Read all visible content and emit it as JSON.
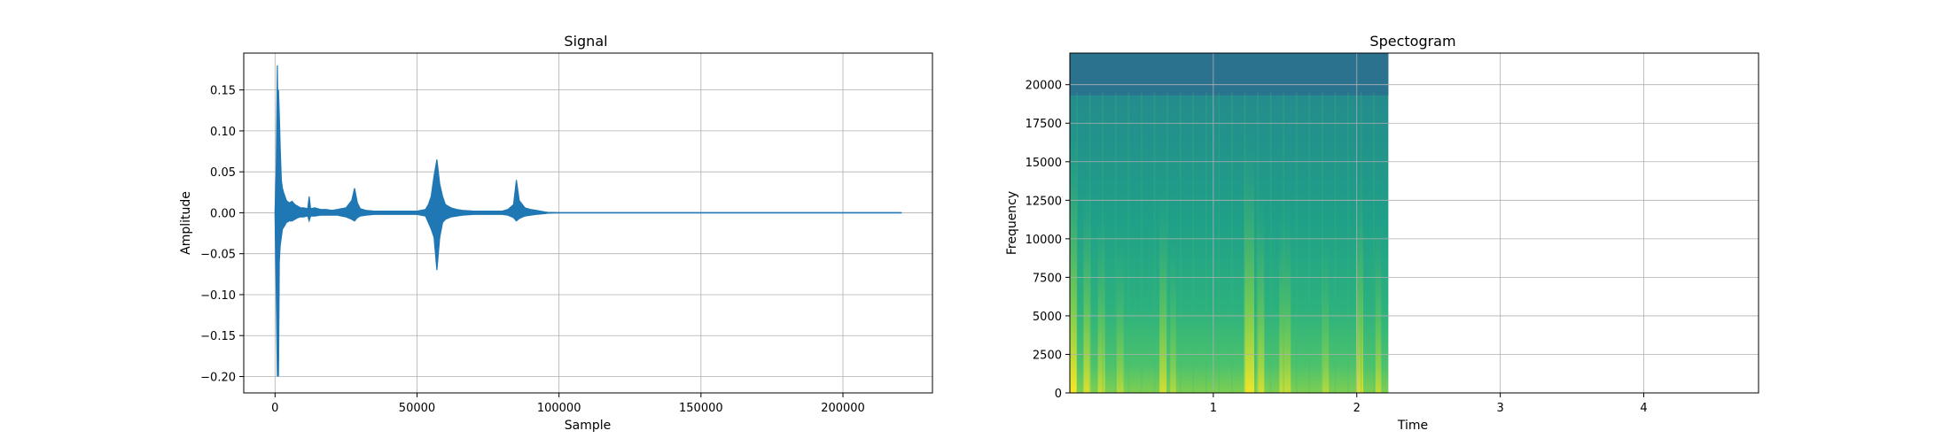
{
  "chart_data": [
    {
      "type": "line",
      "title": "Signal",
      "xlabel": "Sample",
      "ylabel": "Amplitude",
      "xlim": [
        -11025,
        231525
      ],
      "ylim": [
        -0.22,
        0.195
      ],
      "xticks": [
        0,
        50000,
        100000,
        150000,
        200000
      ],
      "xtick_labels": [
        "0",
        "50000",
        "100000",
        "150000",
        "200000"
      ],
      "yticks": [
        -0.2,
        -0.15,
        -0.1,
        -0.05,
        0.0,
        0.05,
        0.1,
        0.15
      ],
      "ytick_labels": [
        "−0.20",
        "−0.15",
        "−0.10",
        "−0.05",
        "0.00",
        "0.05",
        "0.10",
        "0.15"
      ],
      "grid": true,
      "series": [
        {
          "color": "#1f77b4",
          "x": [
            0,
            400,
            800,
            1000,
            1200,
            1500,
            1800,
            2200,
            2600,
            3000,
            3500,
            4000,
            5000,
            6000,
            7000,
            8000,
            9000,
            10000,
            11500,
            12000,
            12500,
            14000,
            16000,
            18000,
            20000,
            22000,
            25000,
            27000,
            28000,
            29000,
            30000,
            32000,
            35000,
            40000,
            45000,
            50000,
            53000,
            54000,
            55000,
            56000,
            57000,
            58000,
            59000,
            60000,
            62000,
            64000,
            66000,
            70000,
            75000,
            80000,
            82000,
            84000,
            85000,
            86000,
            88000,
            90000,
            92000,
            95000,
            96000,
            100000,
            150000,
            200000,
            220500
          ],
          "y_hi": [
            0.0,
            0.05,
            0.18,
            0.12,
            0.15,
            0.12,
            0.08,
            0.04,
            0.03,
            0.025,
            0.02,
            0.015,
            0.012,
            0.014,
            0.01,
            0.008,
            0.006,
            0.006,
            0.005,
            0.02,
            0.005,
            0.006,
            0.004,
            0.004,
            0.003,
            0.004,
            0.006,
            0.015,
            0.03,
            0.012,
            0.005,
            0.003,
            0.002,
            0.002,
            0.002,
            0.002,
            0.004,
            0.01,
            0.02,
            0.045,
            0.065,
            0.035,
            0.02,
            0.01,
            0.006,
            0.004,
            0.003,
            0.002,
            0.002,
            0.002,
            0.004,
            0.01,
            0.04,
            0.015,
            0.006,
            0.004,
            0.003,
            0.001,
            0.0005,
            0.0002,
            0.0002,
            0.0002,
            0.0002
          ],
          "y_lo": [
            0.0,
            -0.09,
            -0.2,
            -0.1,
            -0.2,
            -0.06,
            -0.04,
            -0.03,
            -0.02,
            -0.018,
            -0.015,
            -0.012,
            -0.01,
            -0.01,
            -0.008,
            -0.006,
            -0.005,
            -0.005,
            -0.004,
            -0.01,
            -0.004,
            -0.004,
            -0.003,
            -0.003,
            -0.003,
            -0.003,
            -0.005,
            -0.008,
            -0.01,
            -0.006,
            -0.004,
            -0.003,
            -0.002,
            -0.002,
            -0.002,
            -0.002,
            -0.004,
            -0.012,
            -0.02,
            -0.03,
            -0.07,
            -0.03,
            -0.012,
            -0.008,
            -0.005,
            -0.004,
            -0.003,
            -0.002,
            -0.002,
            -0.002,
            -0.003,
            -0.006,
            -0.01,
            -0.007,
            -0.004,
            -0.003,
            -0.002,
            -0.001,
            -0.0005,
            -0.0002,
            -0.0002,
            -0.0002,
            -0.0002
          ]
        }
      ]
    },
    {
      "type": "heatmap",
      "title": "Spectogram",
      "xlabel": "Time",
      "ylabel": "Frequency",
      "xlim": [
        0,
        4.8
      ],
      "ylim": [
        0,
        22050
      ],
      "data_extent_x": [
        0,
        2.22
      ],
      "xticks": [
        1,
        2,
        3,
        4
      ],
      "xtick_labels": [
        "1",
        "2",
        "3",
        "4"
      ],
      "yticks": [
        0,
        2500,
        5000,
        7500,
        10000,
        12500,
        15000,
        17500,
        20000
      ],
      "ytick_labels": [
        "0",
        "2500",
        "5000",
        "7500",
        "10000",
        "12500",
        "15000",
        "17500",
        "20000"
      ],
      "grid": true,
      "colormap": "viridis",
      "colors": {
        "low": "#2a788e",
        "mid": "#22a884",
        "high": "#fde725",
        "band": "#2c6f8e"
      }
    }
  ]
}
